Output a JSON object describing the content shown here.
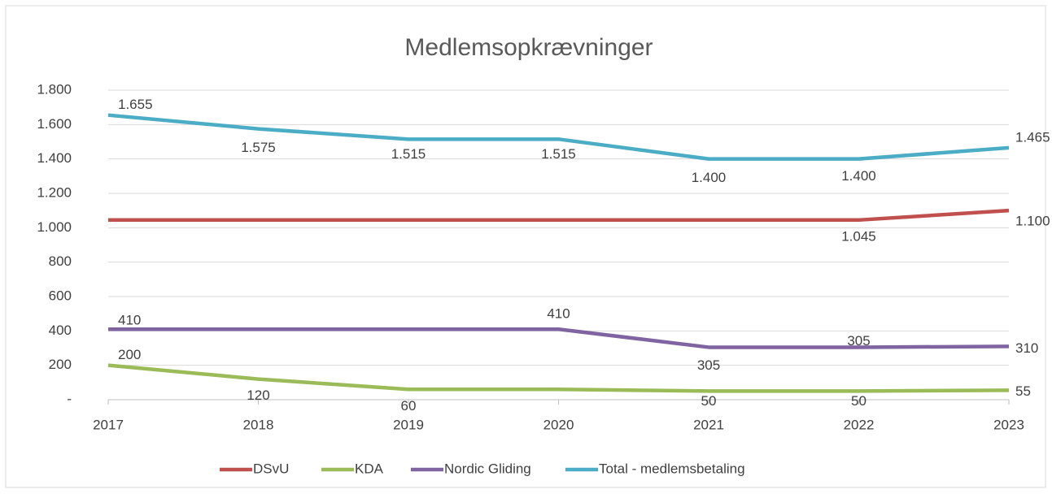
{
  "chart_data": {
    "type": "line",
    "title": "Medlemsopkrævninger",
    "categories": [
      "2017",
      "2018",
      "2019",
      "2020",
      "2021",
      "2022",
      "2023"
    ],
    "series": [
      {
        "name": "DSvU",
        "color": "#c0504d",
        "values": [
          1045,
          1045,
          1045,
          1045,
          1045,
          1045,
          1100
        ],
        "value_labels": [
          null,
          null,
          null,
          null,
          null,
          "1.045",
          "1.100"
        ]
      },
      {
        "name": "KDA",
        "color": "#9bbb59",
        "values": [
          200,
          120,
          60,
          60,
          50,
          50,
          55
        ],
        "value_labels": [
          "200",
          "120",
          "60",
          null,
          "50",
          "50",
          "55"
        ]
      },
      {
        "name": "Nordic Gliding",
        "color": "#8064a2",
        "values": [
          410,
          410,
          410,
          410,
          305,
          305,
          310
        ],
        "value_labels": [
          "410",
          null,
          null,
          "410",
          "305",
          "305",
          "310"
        ]
      },
      {
        "name": "Total - medlemsbetaling",
        "color": "#4bacc6",
        "values": [
          1655,
          1575,
          1515,
          1515,
          1400,
          1400,
          1465
        ],
        "value_labels": [
          "1.655",
          "1.575",
          "1.515",
          "1.515",
          "1.400",
          "1.400",
          "1.465"
        ]
      }
    ],
    "ylim": [
      0,
      1800
    ],
    "yticks": [
      {
        "value": 0,
        "label": "-"
      },
      200,
      400,
      600,
      800,
      {
        "value": 1000,
        "label": "1.000"
      },
      {
        "value": 1200,
        "label": "1.200"
      },
      {
        "value": 1400,
        "label": "1.400"
      },
      {
        "value": 1600,
        "label": "1.600"
      },
      {
        "value": 1800,
        "label": "1.800"
      }
    ],
    "grid": true,
    "legend": "bottom"
  }
}
